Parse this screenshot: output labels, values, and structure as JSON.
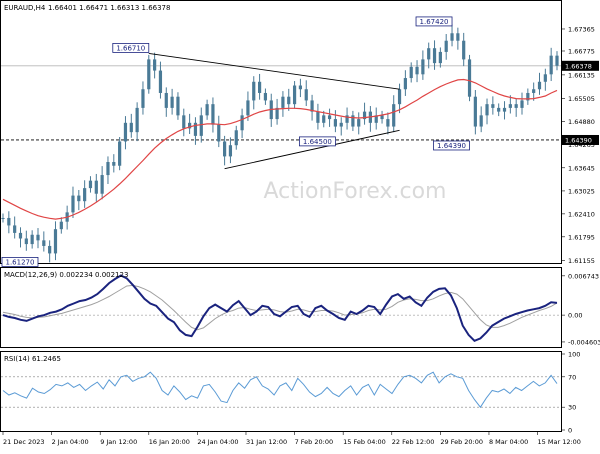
{
  "header": {
    "symbol": "EURAUD,H4",
    "ohlc": "1.66401 1.66471 1.66313 1.66378"
  },
  "watermark": "ActionForex.com",
  "colors": {
    "candle": "#4a7a96",
    "ma": "#e04545",
    "macd": "#1a237e",
    "signal": "#a0a0a0",
    "rsi": "#5b9bd5",
    "trendline": "#000000",
    "label_border": "#1a237e",
    "price_box_bg": "#000000"
  },
  "chart_data": [
    {
      "type": "line",
      "panel": "price",
      "title": "EURAUD,H4",
      "x_ticks": [
        "21 Dec 2023",
        "2 Jan 04:00",
        "9 Jan 12:00",
        "16 Jan 20:00",
        "24 Jan 04:00",
        "31 Jan 12:00",
        "7 Feb 20:00",
        "15 Feb 04:00",
        "22 Feb 12:00",
        "29 Feb 20:00",
        "8 Mar 04:00",
        "15 Mar 12:00"
      ],
      "y_ticks": [
        "1.67365",
        "1.66775",
        "1.66135",
        "1.65505",
        "1.64880",
        "1.64265",
        "1.63645",
        "1.63025",
        "1.62410",
        "1.61795",
        "1.61155"
      ],
      "ylim": [
        1.6112,
        1.6782
      ],
      "current_price": "1.66378",
      "level_line": "1.64390",
      "price_labels": [
        {
          "text": "1.66710",
          "x_index": 25,
          "value": 1.6671
        },
        {
          "text": "1.67420",
          "x_index": 77,
          "value": 1.6742
        },
        {
          "text": "1.64500",
          "x_index": 57,
          "value": 1.645
        },
        {
          "text": "1.64390",
          "x_index": 80,
          "value": 1.6439
        },
        {
          "text": "1.61270",
          "x_index": 6,
          "value": 1.6127
        }
      ],
      "trendlines": [
        {
          "from": [
            25,
            1.6671
          ],
          "to": [
            68,
            1.6575
          ]
        },
        {
          "from": [
            38,
            1.6362
          ],
          "to": [
            68,
            1.6465
          ]
        }
      ],
      "series": [
        {
          "name": "EURAUD",
          "values": [
            1.623,
            1.621,
            1.619,
            1.6175,
            1.616,
            1.6185,
            1.617,
            1.6155,
            1.6135,
            1.62,
            1.622,
            1.6245,
            1.629,
            1.6275,
            1.631,
            1.633,
            1.6295,
            1.6345,
            1.638,
            1.637,
            1.6435,
            1.6485,
            1.646,
            1.6525,
            1.6575,
            1.6655,
            1.6625,
            1.6565,
            1.6525,
            1.6555,
            1.6505,
            1.647,
            1.6485,
            1.645,
            1.6505,
            1.6535,
            1.648,
            1.6435,
            1.6395,
            1.6425,
            1.6465,
            1.6505,
            1.6545,
            1.6595,
            1.6565,
            1.6545,
            1.6495,
            1.6525,
            1.6555,
            1.6535,
            1.6585,
            1.6575,
            1.6545,
            1.6515,
            1.6485,
            1.6505,
            1.6495,
            1.6475,
            1.6485,
            1.6505,
            1.6475,
            1.6495,
            1.6515,
            1.6485,
            1.6505,
            1.6495,
            1.6475,
            1.6535,
            1.6575,
            1.6605,
            1.6635,
            1.6615,
            1.6655,
            1.6685,
            1.6645,
            1.6675,
            1.6705,
            1.6725,
            1.6705,
            1.6655,
            1.6555,
            1.6475,
            1.6505,
            1.6535,
            1.6525,
            1.6515,
            1.6525,
            1.6535,
            1.6525,
            1.6545,
            1.6565,
            1.6575,
            1.6595,
            1.6615,
            1.6665,
            1.6638
          ]
        },
        {
          "name": "MA",
          "values": [
            1.628,
            1.6272,
            1.6264,
            1.6256,
            1.6249,
            1.6242,
            1.6236,
            1.6232,
            1.6229,
            1.6227,
            1.6229,
            1.6232,
            1.6238,
            1.6245,
            1.6253,
            1.6262,
            1.6272,
            1.6283,
            1.6295,
            1.6307,
            1.6321,
            1.6336,
            1.6352,
            1.6368,
            1.6384,
            1.6401,
            1.6417,
            1.6431,
            1.6443,
            1.6453,
            1.6462,
            1.6469,
            1.6474,
            1.6478,
            1.648,
            1.6482,
            1.6482,
            1.6481,
            1.648,
            1.6483,
            1.6488,
            1.6494,
            1.6501,
            1.6508,
            1.6514,
            1.6518,
            1.6521,
            1.6522,
            1.6523,
            1.6524,
            1.6524,
            1.6523,
            1.6521,
            1.6518,
            1.6515,
            1.6512,
            1.6509,
            1.6506,
            1.6503,
            1.65,
            1.6499,
            1.6498,
            1.6499,
            1.6501,
            1.6503,
            1.6506,
            1.6509,
            1.6514,
            1.652,
            1.6528,
            1.6537,
            1.6546,
            1.6556,
            1.6565,
            1.6574,
            1.6582,
            1.6589,
            1.6595,
            1.66,
            1.6601,
            1.6598,
            1.6592,
            1.6584,
            1.6576,
            1.6569,
            1.6562,
            1.6557,
            1.6553,
            1.655,
            1.6549,
            1.6549,
            1.655,
            1.6553,
            1.6557,
            1.6565,
            1.6572
          ]
        }
      ]
    },
    {
      "type": "line",
      "panel": "macd",
      "title": "MACD(12,26,9) 0.002234 0.002123",
      "y_ticks": [
        "0.006743",
        "0.00",
        "-0.004603"
      ],
      "ylim": [
        -0.0053,
        0.0074
      ],
      "series": [
        {
          "name": "MACD",
          "values": [
            0.0,
            -0.0003,
            -0.0005,
            -0.0008,
            -0.001,
            -0.0006,
            -0.0002,
            0.0,
            0.0004,
            0.0006,
            0.001,
            0.0016,
            0.002,
            0.0024,
            0.0026,
            0.003,
            0.0036,
            0.0045,
            0.0055,
            0.0062,
            0.0068,
            0.0063,
            0.0052,
            0.004,
            0.0028,
            0.002,
            0.0016,
            0.0005,
            -0.0006,
            -0.0012,
            -0.0026,
            -0.0034,
            -0.0036,
            -0.002,
            -0.0002,
            0.0012,
            0.0018,
            0.0012,
            0.0006,
            0.0017,
            0.0024,
            0.0012,
            0.0,
            0.0006,
            0.0016,
            0.0014,
            0.0002,
            -0.0002,
            0.0006,
            0.0014,
            0.0016,
            0.0002,
            -0.0003,
            0.0012,
            0.0016,
            0.0008,
            0.0002,
            -0.0005,
            -0.0008,
            0.0006,
            0.0002,
            0.0008,
            0.0016,
            0.0014,
            0.0002,
            0.0018,
            0.0032,
            0.0036,
            0.0028,
            0.0032,
            0.0022,
            0.0016,
            0.003,
            0.004,
            0.0045,
            0.0046,
            0.0034,
            0.0012,
            -0.0018,
            -0.0034,
            -0.0044,
            -0.004,
            -0.003,
            -0.0018,
            -0.0012,
            -0.0006,
            -0.0002,
            0.0002,
            0.0005,
            0.0008,
            0.001,
            0.0012,
            0.0016,
            0.0022,
            0.0021
          ]
        },
        {
          "name": "Signal",
          "values": [
            0.0005,
            0.0003,
            0.0001,
            -0.0002,
            -0.0004,
            -0.0005,
            -0.0004,
            -0.0003,
            -0.0001,
            0.0001,
            0.0003,
            0.0006,
            0.0009,
            0.0012,
            0.0015,
            0.0018,
            0.0022,
            0.0027,
            0.0032,
            0.0038,
            0.0044,
            0.005,
            0.0051,
            0.0049,
            0.0045,
            0.004,
            0.0033,
            0.0026,
            0.0017,
            0.0008,
            -0.0002,
            -0.0012,
            -0.0021,
            -0.0025,
            -0.0022,
            -0.0014,
            -0.0006,
            0.0,
            0.0005,
            0.0008,
            0.0012,
            0.0013,
            0.001,
            0.0008,
            0.0009,
            0.001,
            0.0009,
            0.0006,
            0.0005,
            0.0007,
            0.001,
            0.0009,
            0.0006,
            0.0006,
            0.0008,
            0.0008,
            0.0007,
            0.0004,
            0.0,
            0.0001,
            0.0002,
            0.0004,
            0.0008,
            0.001,
            0.0009,
            0.001,
            0.0015,
            0.0022,
            0.0026,
            0.0028,
            0.0027,
            0.0025,
            0.0025,
            0.0028,
            0.0033,
            0.0037,
            0.0039,
            0.0036,
            0.0028,
            0.0016,
            0.0004,
            -0.0008,
            -0.0017,
            -0.0021,
            -0.0021,
            -0.0018,
            -0.0014,
            -0.0009,
            -0.0004,
            0.0,
            0.0004,
            0.0008,
            0.0011,
            0.0015,
            0.0021
          ]
        }
      ]
    },
    {
      "type": "line",
      "panel": "rsi",
      "title": "RSI(14) 61.2465",
      "y_ticks": [
        "100",
        "70",
        "30",
        "0"
      ],
      "ylim": [
        0,
        100
      ],
      "dotted_levels": [
        70,
        30
      ],
      "series": [
        {
          "name": "RSI",
          "values": [
            52,
            46,
            49,
            45,
            42,
            55,
            50,
            48,
            53,
            60,
            58,
            62,
            56,
            60,
            52,
            58,
            63,
            54,
            66,
            58,
            70,
            72,
            64,
            68,
            70,
            76,
            68,
            52,
            46,
            58,
            50,
            40,
            45,
            42,
            58,
            60,
            50,
            38,
            36,
            52,
            62,
            55,
            66,
            70,
            58,
            54,
            46,
            58,
            62,
            52,
            68,
            60,
            50,
            44,
            48,
            56,
            48,
            44,
            52,
            58,
            46,
            56,
            60,
            46,
            60,
            54,
            48,
            60,
            70,
            72,
            68,
            62,
            72,
            76,
            62,
            70,
            74,
            70,
            68,
            52,
            40,
            30,
            42,
            52,
            50,
            54,
            48,
            56,
            52,
            58,
            64,
            58,
            62,
            72,
            61
          ]
        }
      ]
    }
  ]
}
